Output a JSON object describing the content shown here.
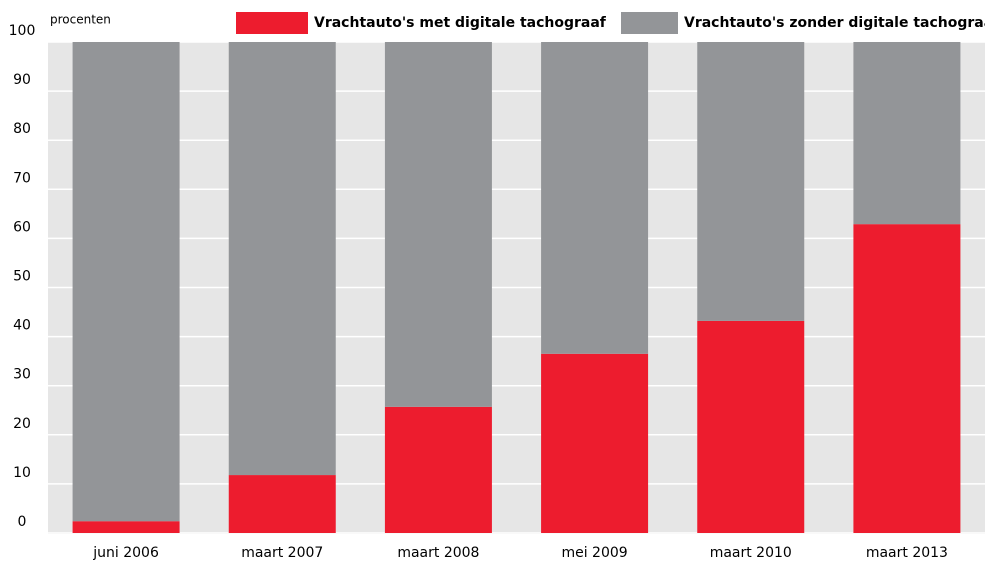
{
  "chart_data": {
    "type": "stacked_bar",
    "y_axis_label": "procenten",
    "categories": [
      "juni 2006",
      "maart 2007",
      "maart 2008",
      "mei 2009",
      "maart 2010",
      "maart 2013"
    ],
    "series": [
      {
        "name": "Vrachtauto's met digitale tachograaf",
        "color": "#ed1c2e",
        "values": [
          2.4,
          11.8,
          25.7,
          36.5,
          43.2,
          62.9
        ]
      },
      {
        "name": "Vrachtauto's zonder digitale tachograaf",
        "color": "#939598",
        "values": [
          97.6,
          88.2,
          74.3,
          63.5,
          56.8,
          37.1
        ]
      }
    ],
    "ylim": [
      0,
      100
    ],
    "yticks": [
      0,
      10,
      20,
      30,
      40,
      50,
      60,
      70,
      80,
      90,
      100
    ],
    "grid": true
  }
}
